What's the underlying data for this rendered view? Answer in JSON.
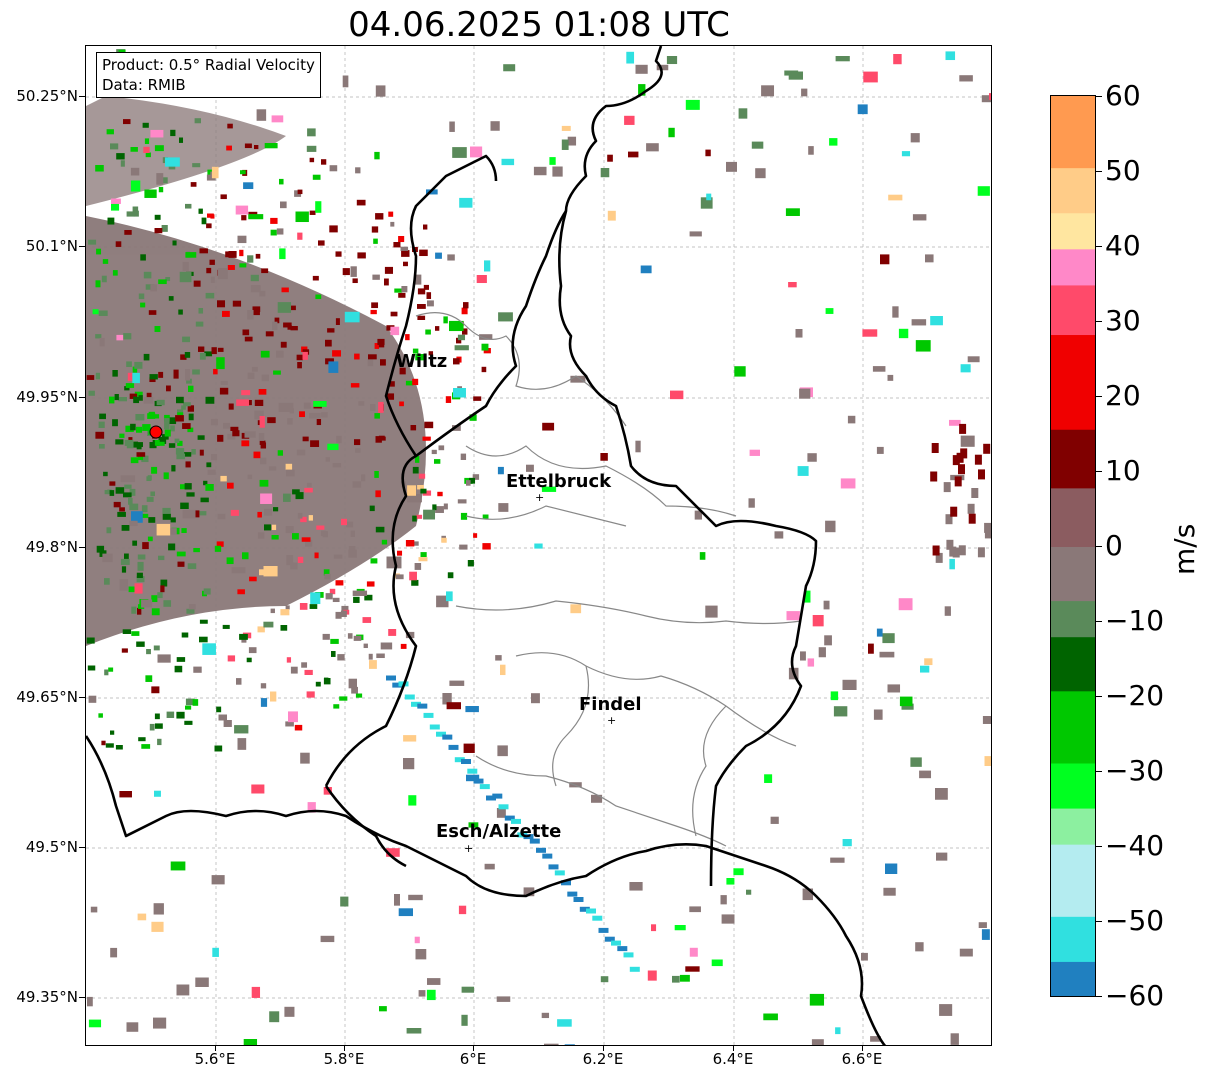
{
  "title": "04.06.2025 01:08 UTC",
  "info": {
    "product": "Product: 0.5° Radial Velocity",
    "source": "Data: RMIB"
  },
  "axes": {
    "lat_labels": [
      "50.25°N",
      "50.1°N",
      "49.95°N",
      "49.8°N",
      "49.65°N",
      "49.5°N",
      "49.35°N"
    ],
    "lon_labels": [
      "5.6°E",
      "5.8°E",
      "6°E",
      "6.2°E",
      "6.4°E",
      "6.6°E"
    ],
    "gridlines": true
  },
  "cities": [
    {
      "name": "Wiltz"
    },
    {
      "name": "Ettelbruck"
    },
    {
      "name": "Findel"
    },
    {
      "name": "Esch/Alzette"
    }
  ],
  "colorbar": {
    "unit": "m/s",
    "ticks": [
      "60",
      "50",
      "40",
      "30",
      "20",
      "10",
      "0",
      "−10",
      "−20",
      "−30",
      "−40",
      "−50",
      "−60"
    ],
    "range": [
      -60,
      60
    ],
    "colors": {
      "high_orange": "#ff9a50",
      "light_orange": "#ffcc88",
      "pale_yellow": "#ffe6a0",
      "pink": "#ff88c8",
      "rose": "#ff4a6a",
      "red": "#f00000",
      "dark_red": "#800000",
      "near_zero_red": "#8b5c60",
      "zero_gray": "#8a7878",
      "near_zero_green": "#5a8a5a",
      "dark_green": "#006400",
      "green": "#00c800",
      "bright_green": "#00ff20",
      "light_green": "#8cf0a0",
      "pale_cyan": "#b4ecf0",
      "cyan": "#30e0e0",
      "blue": "#2080c0"
    }
  }
}
